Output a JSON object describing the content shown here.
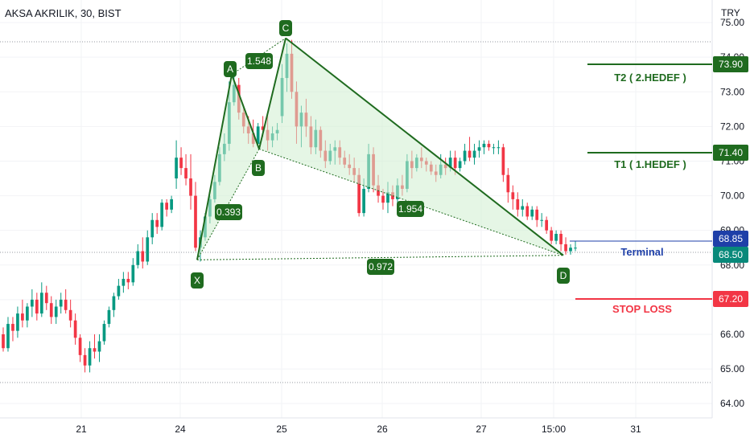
{
  "header": {
    "title": "AKSA AKRILIK, 30, BIST",
    "currency": "TRY"
  },
  "colors": {
    "up": "#089981",
    "down": "#f23645",
    "pattern": "#1f6b1f",
    "pattern_fill": "#cfeecf",
    "target": "#1f6b1f",
    "stop": "#f23645",
    "terminal": "#1e3fa8",
    "price": "#08897a"
  },
  "chart_data": {
    "type": "candlestick",
    "xlabels": [
      "21",
      "24",
      "25",
      "26",
      "27",
      "15:00",
      "31"
    ],
    "ylim": [
      63.8,
      75.35
    ],
    "yticks": [
      "64.00",
      "65.00",
      "66.00",
      "67.00",
      "68.00",
      "69.00",
      "70.00",
      "71.00",
      "72.00",
      "73.00",
      "74.00",
      "75.00"
    ],
    "patterns": {
      "points": [
        {
          "label": "X",
          "price": 68.15
        },
        {
          "label": "A",
          "price": 73.5
        },
        {
          "label": "B",
          "price": 71.35
        },
        {
          "label": "C",
          "price": 74.55
        },
        {
          "label": "D",
          "price": 68.28
        }
      ],
      "ratios": [
        "1.548",
        "0.393",
        "1.954",
        "0.972"
      ]
    },
    "levels": {
      "t2": {
        "label": "T2  ( 2.HEDEF )",
        "value": "73.90"
      },
      "t1": {
        "label": "T1  ( 1.HEDEF )",
        "value": "71.40"
      },
      "terminal": {
        "label": "Terminal",
        "value": "68.85"
      },
      "current": {
        "value": "68.50"
      },
      "stop": {
        "label": "STOP LOSS",
        "value": "67.20"
      }
    },
    "candles": [
      [
        66,
        66.2,
        65.5,
        65.6
      ],
      [
        65.6,
        66.5,
        65.5,
        66.3
      ],
      [
        66.3,
        66.5,
        65.8,
        66.1
      ],
      [
        66.1,
        66.8,
        65.9,
        66.6
      ],
      [
        66.6,
        67,
        66.2,
        66.4
      ],
      [
        66.4,
        66.9,
        66.2,
        66.8
      ],
      [
        66.8,
        67.3,
        66.5,
        67
      ],
      [
        67,
        67.2,
        66.4,
        66.6
      ],
      [
        66.6,
        67.5,
        66.5,
        67.2
      ],
      [
        67.2,
        67.4,
        66.7,
        66.9
      ],
      [
        66.9,
        67.1,
        66.3,
        66.5
      ],
      [
        66.5,
        67,
        66.3,
        66.8
      ],
      [
        66.8,
        67.2,
        66.6,
        67
      ],
      [
        67,
        67.3,
        66.6,
        66.7
      ],
      [
        66.7,
        67,
        66.2,
        66.4
      ],
      [
        66.4,
        66.6,
        65.7,
        65.9
      ],
      [
        65.9,
        66,
        65.2,
        65.4
      ],
      [
        65.4,
        65.6,
        64.9,
        65.1
      ],
      [
        65.1,
        65.8,
        64.9,
        65.6
      ],
      [
        65.6,
        66,
        65.3,
        65.5
      ],
      [
        65.5,
        66,
        65.2,
        65.8
      ],
      [
        65.8,
        66.4,
        65.7,
        66.3
      ],
      [
        66.3,
        66.8,
        66.2,
        66.7
      ],
      [
        66.7,
        67.2,
        66.5,
        67.1
      ],
      [
        67.1,
        67.6,
        67,
        67.4
      ],
      [
        67.4,
        67.8,
        67.2,
        67.6
      ],
      [
        67.6,
        67.8,
        67.3,
        67.5
      ],
      [
        67.5,
        68.2,
        67.4,
        68
      ],
      [
        68,
        68.6,
        67.9,
        68.4
      ],
      [
        68.4,
        68.8,
        67.9,
        68.1
      ],
      [
        68.1,
        69,
        68,
        68.8
      ],
      [
        68.8,
        69.5,
        68.6,
        69.3
      ],
      [
        69.3,
        69.5,
        68.9,
        69.1
      ],
      [
        69.1,
        69.9,
        69,
        69.8
      ],
      [
        69.8,
        69.9,
        69.4,
        69.6
      ],
      [
        69.6,
        70,
        69.5,
        69.9
      ],
      [
        70.5,
        71.6,
        70.2,
        71.1
      ],
      [
        71.1,
        71.4,
        70.6,
        70.8
      ],
      [
        70.8,
        71.2,
        70.3,
        70.5
      ],
      [
        70.5,
        71.2,
        69.6,
        70
      ],
      [
        70,
        70.4,
        68.4,
        68.5
      ],
      [
        68.5,
        69,
        68.1,
        68.8
      ],
      [
        68.8,
        69.5,
        68.7,
        69.4
      ],
      [
        69.4,
        70,
        69.2,
        69.9
      ],
      [
        69.9,
        70.6,
        69.8,
        70.4
      ],
      [
        70.4,
        71.4,
        70.3,
        71.2
      ],
      [
        71.2,
        71.8,
        71,
        71.5
      ],
      [
        71.5,
        73.3,
        71.3,
        72.7
      ],
      [
        72.7,
        73.5,
        72.6,
        73.2
      ],
      [
        73.2,
        73.4,
        72.2,
        72.4
      ],
      [
        72.4,
        72.6,
        71.8,
        72
      ],
      [
        72,
        72.3,
        71.5,
        71.8
      ],
      [
        71.8,
        72.2,
        71.4,
        71.5
      ],
      [
        71.5,
        72.1,
        71.4,
        72
      ],
      [
        72,
        72.3,
        71.7,
        71.9
      ],
      [
        71.9,
        72.3,
        71.3,
        71.6
      ],
      [
        71.6,
        72,
        71.4,
        71.8
      ],
      [
        71.8,
        72.1,
        71.6,
        71.9
      ],
      [
        72.3,
        73.8,
        72.1,
        73.4
      ],
      [
        73.4,
        74.4,
        73,
        74.1
      ],
      [
        74.1,
        74.5,
        72.8,
        73
      ],
      [
        73,
        73.3,
        71.5,
        72
      ],
      [
        72,
        72.6,
        71.4,
        72.4
      ],
      [
        72.4,
        72.8,
        71.7,
        72
      ],
      [
        72,
        72.3,
        71.2,
        71.4
      ],
      [
        71.4,
        72.2,
        71.2,
        71.9
      ],
      [
        71.9,
        72,
        71.1,
        71.3
      ],
      [
        71.3,
        71.6,
        70.8,
        71
      ],
      [
        71,
        71.5,
        70.9,
        71.3
      ],
      [
        71.3,
        71.6,
        70.9,
        71.4
      ],
      [
        71.4,
        71.6,
        70.9,
        71.1
      ],
      [
        71.1,
        71.3,
        70.8,
        70.9
      ],
      [
        70.9,
        71.2,
        70.6,
        70.8
      ],
      [
        70.8,
        71.1,
        70.4,
        70.6
      ],
      [
        70.6,
        70.8,
        69.4,
        69.5
      ],
      [
        69.5,
        70.5,
        69.4,
        70.2
      ],
      [
        70.2,
        71.5,
        70.1,
        71.2
      ],
      [
        71.2,
        71.4,
        70.1,
        70.3
      ],
      [
        70.3,
        70.6,
        69.8,
        70
      ],
      [
        70,
        70.2,
        69.6,
        69.8
      ],
      [
        69.8,
        70.4,
        69.5,
        70.1
      ],
      [
        70.1,
        70.3,
        69.7,
        69.9
      ],
      [
        69.9,
        70.5,
        69.8,
        70.3
      ],
      [
        70.3,
        70.6,
        70,
        70.2
      ],
      [
        70.2,
        71.2,
        70.1,
        71
      ],
      [
        71,
        71.3,
        70.5,
        70.8
      ],
      [
        70.8,
        71.2,
        70.7,
        71.1
      ],
      [
        71.1,
        71.4,
        70.8,
        71
      ],
      [
        71,
        71.1,
        70.7,
        70.9
      ],
      [
        70.9,
        71,
        70.6,
        70.7
      ],
      [
        70.7,
        70.9,
        70.4,
        70.6
      ],
      [
        70.6,
        71.2,
        70.5,
        70.9
      ],
      [
        70.9,
        71.1,
        70.6,
        70.8
      ],
      [
        70.8,
        71.3,
        70.7,
        71.1
      ],
      [
        71.1,
        71.3,
        70.6,
        70.8
      ],
      [
        70.8,
        71.1,
        70.7,
        71
      ],
      [
        71,
        71.5,
        70.9,
        71.3
      ],
      [
        71.3,
        71.7,
        71,
        71.1
      ],
      [
        71.1,
        71.5,
        70.9,
        71.3
      ],
      [
        71.3,
        71.6,
        71.1,
        71.4
      ],
      [
        71.4,
        71.6,
        71.2,
        71.5
      ],
      [
        71.5,
        71.6,
        71.3,
        71.4
      ],
      [
        71.4,
        71.5,
        71.2,
        71.4
      ],
      [
        71.4,
        71.6,
        71.2,
        71.4
      ],
      [
        71.4,
        71.5,
        70.4,
        70.6
      ],
      [
        70.6,
        70.8,
        69.8,
        70.1
      ],
      [
        70.1,
        70.3,
        69.6,
        69.9
      ],
      [
        69.9,
        70.1,
        69.4,
        69.6
      ],
      [
        69.6,
        69.9,
        69.4,
        69.7
      ],
      [
        69.7,
        69.8,
        69.3,
        69.4
      ],
      [
        69.4,
        69.7,
        69.3,
        69.6
      ],
      [
        69.6,
        69.7,
        69.1,
        69.3
      ],
      [
        69.3,
        69.5,
        69.1,
        69.3
      ],
      [
        69.3,
        69.4,
        68.9,
        69
      ],
      [
        69,
        69.1,
        68.6,
        68.7
      ],
      [
        68.7,
        69,
        68.6,
        68.9
      ],
      [
        68.9,
        69,
        68.4,
        68.6
      ],
      [
        68.6,
        68.8,
        68.3,
        68.4
      ],
      [
        68.4,
        68.6,
        68.3,
        68.5
      ],
      [
        68.5,
        68.7,
        68.4,
        68.5
      ]
    ]
  }
}
